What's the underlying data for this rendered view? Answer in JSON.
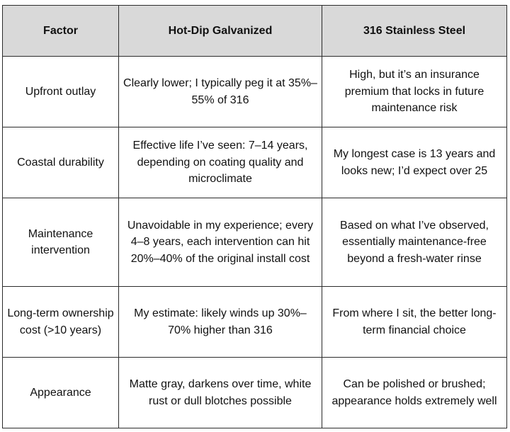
{
  "table": {
    "headers": [
      "Factor",
      "Hot-Dip Galvanized",
      "316 Stainless Steel"
    ],
    "rows": [
      {
        "factor": "Upfront outlay",
        "galvanized": "Clearly lower; I typically peg it at 35%–55% of 316",
        "stainless": "High, but it’s an insurance premium that locks in future maintenance risk"
      },
      {
        "factor": "Coastal durability",
        "galvanized": "Effective life I’ve seen: 7–14 years, depending on coating quality and microclimate",
        "stainless": "My longest case is 13 years and looks new; I’d expect over 25"
      },
      {
        "factor": "Maintenance intervention",
        "galvanized": "Unavoidable in my experience; every 4–8 years, each intervention can hit 20%–40% of the original install cost",
        "stainless": "Based on what I’ve observed, essentially maintenance-free beyond a fresh-water rinse"
      },
      {
        "factor": "Long-term ownership cost (>10 years)",
        "galvanized": "My estimate: likely winds up 30%–70% higher than 316",
        "stainless": "From where I sit, the better long-term financial choice"
      },
      {
        "factor": "Appearance",
        "galvanized": "Matte gray, darkens over time, white rust or dull blotches possible",
        "stainless": "Can be polished or brushed; appearance holds extremely well"
      }
    ]
  }
}
